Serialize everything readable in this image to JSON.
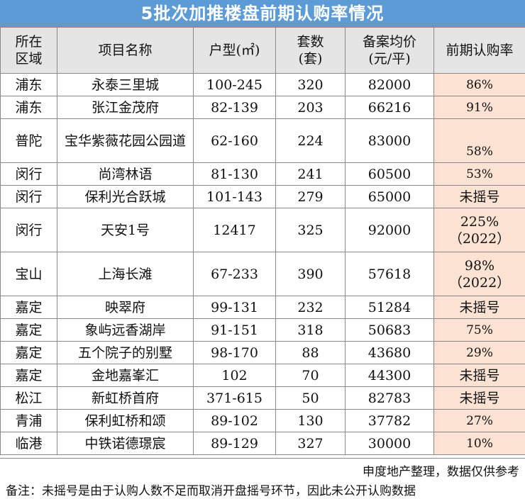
{
  "title": "5批次加推楼盘前期认购率情况",
  "headers": {
    "district": "所在\n区域",
    "project": "项目名称",
    "layout": "户型(㎡)",
    "units": "套数\n(套)",
    "price": "备案均价\n(元/平)",
    "rate": "前期认购率"
  },
  "rows": [
    {
      "district": "浦东",
      "project": "永泰三里城",
      "layout": "100-245",
      "units": "320",
      "price": "82000",
      "rate": "86%"
    },
    {
      "district": "浦东",
      "project": "张江金茂府",
      "layout": "82-139",
      "units": "203",
      "price": "66216",
      "rate": "91%"
    },
    {
      "district": "普陀",
      "project": "宝华紫薇花园公园道",
      "layout": "62-160",
      "units": "224",
      "price": "83000",
      "rate": "58%"
    },
    {
      "district": "闵行",
      "project": "尚湾林语",
      "layout": "81-130",
      "units": "241",
      "price": "60500",
      "rate": "53%"
    },
    {
      "district": "闵行",
      "project": "保利光合跃城",
      "layout": "101-143",
      "units": "279",
      "price": "65000",
      "rate": "未摇号"
    },
    {
      "district": "闵行",
      "project": "天安1号",
      "layout": "12417",
      "units": "325",
      "price": "92000",
      "rate": "225%\n（2022）"
    },
    {
      "district": "宝山",
      "project": "上海长滩",
      "layout": "67-233",
      "units": "390",
      "price": "57618",
      "rate": "98%\n（2022）"
    },
    {
      "district": "嘉定",
      "project": "映翠府",
      "layout": "99-131",
      "units": "232",
      "price": "51284",
      "rate": "未摇号"
    },
    {
      "district": "嘉定",
      "project": "象屿远香湖岸",
      "layout": "91-151",
      "units": "318",
      "price": "50683",
      "rate": "75%"
    },
    {
      "district": "嘉定",
      "project": "五个院子的别墅",
      "layout": "98-170",
      "units": "88",
      "price": "43680",
      "rate": "29%"
    },
    {
      "district": "嘉定",
      "project": "金地嘉峯汇",
      "layout": "102",
      "units": "70",
      "price": "44300",
      "rate": "未摇号"
    },
    {
      "district": "松江",
      "project": "新虹桥首府",
      "layout": "371-615",
      "units": "50",
      "price": "82783",
      "rate": "未摇号"
    },
    {
      "district": "青浦",
      "project": "保利虹桥和颂",
      "layout": "89-102",
      "units": "130",
      "price": "37782",
      "rate": "27%"
    },
    {
      "district": "临港",
      "project": "中铁诺德璟宸",
      "layout": "89-129",
      "units": "327",
      "price": "30000",
      "rate": "10%"
    }
  ],
  "footer": {
    "source": "申度地产整理，数据仅供参考",
    "note": "备注：未摇号是由于认购人数不足而取消开盘摇号环节，因此未公开认购数据"
  }
}
